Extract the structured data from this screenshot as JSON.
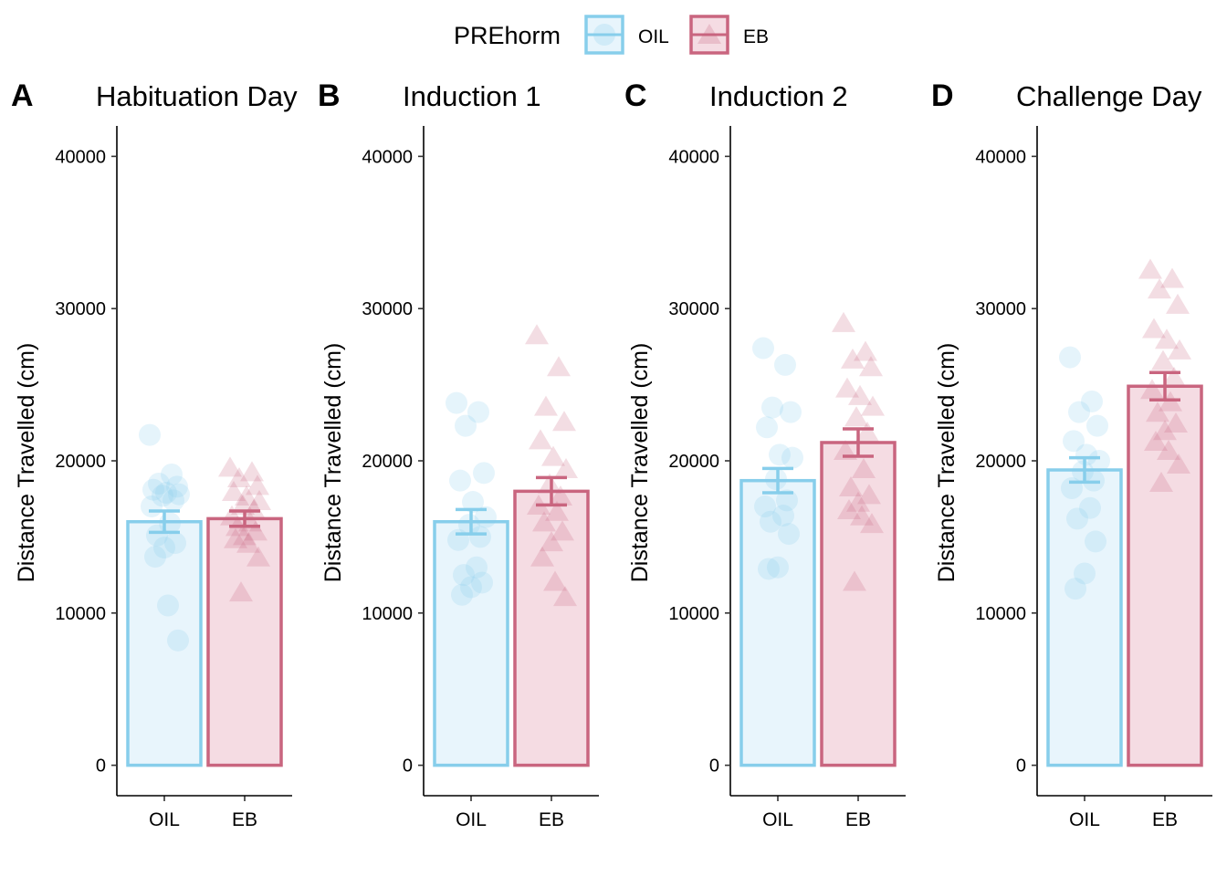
{
  "legend": {
    "title": "PREhorm",
    "items": [
      {
        "label": "OIL",
        "color": "#87CEEB",
        "shape": "circle"
      },
      {
        "label": "EB",
        "color": "#C9657F",
        "shape": "triangle"
      }
    ]
  },
  "chart_data": [
    {
      "type": "bar",
      "panel_tag": "A",
      "title": "Habituation Day",
      "ylabel": "Distance Travelled (cm)",
      "xlabel": "",
      "categories": [
        "OIL",
        "EB"
      ],
      "ylim": [
        -2000,
        42000
      ],
      "yticks": [
        0,
        10000,
        20000,
        30000,
        40000
      ],
      "values": [
        16000,
        16200
      ],
      "error": [
        [
          15300,
          16700
        ],
        [
          15700,
          16700
        ]
      ],
      "points": [
        [
          21700,
          19100,
          18500,
          18300,
          18100,
          17900,
          17800,
          17700,
          17400,
          17000,
          15900,
          15100,
          14600,
          14300,
          13700,
          10500,
          8200
        ],
        [
          19500,
          19200,
          18800,
          18300,
          17900,
          17600,
          17300,
          17000,
          16700,
          16300,
          15900,
          15600,
          15300,
          15000,
          14800,
          14500,
          13600,
          11300
        ]
      ],
      "grid": false
    },
    {
      "type": "bar",
      "panel_tag": "B",
      "title": "Induction 1",
      "ylabel": "Distance Travelled (cm)",
      "xlabel": "",
      "categories": [
        "OIL",
        "EB"
      ],
      "ylim": [
        -2000,
        42000
      ],
      "yticks": [
        0,
        10000,
        20000,
        30000,
        40000
      ],
      "values": [
        16000,
        18000
      ],
      "error": [
        [
          15200,
          16800
        ],
        [
          17100,
          18900
        ]
      ],
      "points": [
        [
          23800,
          23200,
          22300,
          19200,
          18700,
          17300,
          16300,
          15800,
          15000,
          14800,
          13000,
          12500,
          12000,
          11700,
          11200
        ],
        [
          28200,
          26100,
          23500,
          22500,
          21300,
          20200,
          19400,
          18400,
          17600,
          17000,
          16600,
          15900,
          15300,
          14600,
          13600,
          12000,
          11000
        ]
      ],
      "grid": false
    },
    {
      "type": "bar",
      "panel_tag": "C",
      "title": "Induction 2",
      "ylabel": "Distance Travelled (cm)",
      "xlabel": "",
      "categories": [
        "OIL",
        "EB"
      ],
      "ylim": [
        -2000,
        42000
      ],
      "yticks": [
        0,
        10000,
        20000,
        30000,
        40000
      ],
      "values": [
        18700,
        21200
      ],
      "error": [
        [
          17900,
          19500
        ],
        [
          20300,
          22100
        ]
      ],
      "points": [
        [
          27400,
          26300,
          23500,
          23200,
          22200,
          20400,
          20200,
          18800,
          17400,
          17000,
          16400,
          16000,
          15200,
          13000,
          12900
        ],
        [
          29000,
          27100,
          26600,
          26100,
          24700,
          24200,
          23500,
          22800,
          21800,
          20600,
          19400,
          18200,
          17700,
          17200,
          16700,
          16300,
          15800,
          12000
        ]
      ],
      "grid": false
    },
    {
      "type": "bar",
      "panel_tag": "D",
      "title": "Challenge Day",
      "ylabel": "Distance Travelled (cm)",
      "xlabel": "",
      "categories": [
        "OIL",
        "EB"
      ],
      "ylim": [
        -2000,
        42000
      ],
      "yticks": [
        0,
        10000,
        20000,
        30000,
        40000
      ],
      "values": [
        19400,
        24900
      ],
      "error": [
        [
          18600,
          20200
        ],
        [
          24000,
          25800
        ]
      ],
      "points": [
        [
          26800,
          23900,
          23200,
          22300,
          21300,
          20400,
          20000,
          19300,
          18700,
          18200,
          16900,
          16200,
          14700,
          12600,
          11600
        ],
        [
          32500,
          31900,
          31200,
          30200,
          28600,
          27900,
          27200,
          26500,
          25400,
          24600,
          23800,
          23100,
          22400,
          21900,
          21200,
          20600,
          19700,
          18500
        ]
      ],
      "grid": false
    }
  ]
}
